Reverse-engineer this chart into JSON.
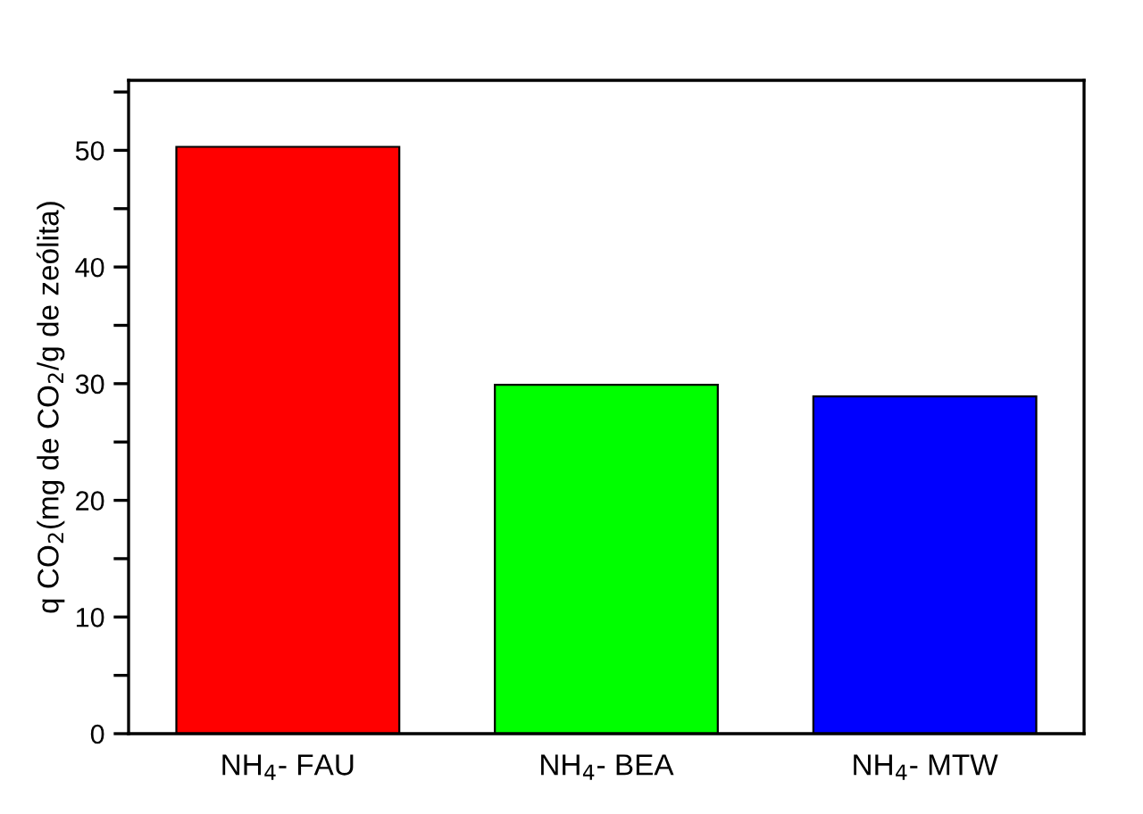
{
  "chart_data": {
    "type": "bar",
    "ylabel": "q CO$_{2}$(mg de CO$_{2}$/g de zeólita)",
    "categories": [
      "NH$_{4}$- FAU",
      "NH$_{4}$- BEA",
      "NH$_{4}$- MTW"
    ],
    "values": [
      50.3,
      29.9,
      28.9
    ],
    "colors": [
      "#ff0000",
      "#00ff00",
      "#0000ff"
    ],
    "ylim": [
      0,
      56
    ],
    "yticks": [
      0,
      {
        "value": 5,
        "label": null
      },
      10,
      {
        "value": 15,
        "label": null
      },
      20,
      {
        "value": 25,
        "label": null
      },
      30,
      {
        "value": 35,
        "label": null
      },
      40,
      {
        "value": 45,
        "label": null
      },
      50,
      {
        "value": 55,
        "label": null
      }
    ],
    "grid": false,
    "legend": false
  }
}
